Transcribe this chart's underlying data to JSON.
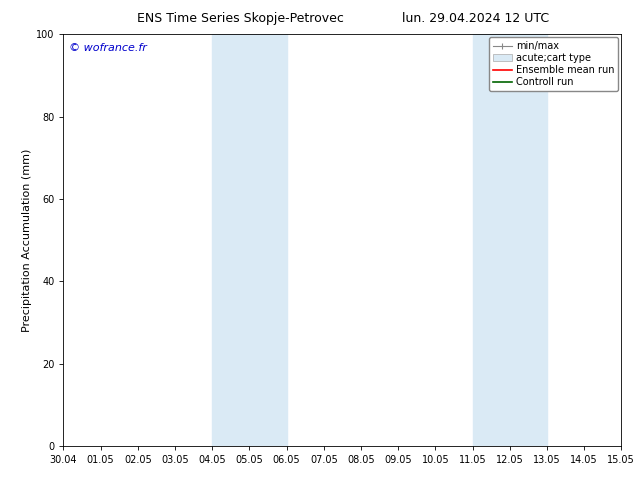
{
  "title_left": "ENS Time Series Skopje-Petrovec",
  "title_right": "lun. 29.04.2024 12 UTC",
  "ylabel": "Precipitation Accumulation (mm)",
  "watermark": "© wofrance.fr",
  "watermark_color": "#0000cc",
  "ylim": [
    0,
    100
  ],
  "xtick_labels": [
    "30.04",
    "01.05",
    "02.05",
    "03.05",
    "04.05",
    "05.05",
    "06.05",
    "07.05",
    "08.05",
    "09.05",
    "10.05",
    "11.05",
    "12.05",
    "13.05",
    "14.05",
    "15.05"
  ],
  "shaded_regions": [
    {
      "xstart": 4.0,
      "xend": 5.0,
      "color": "#daeaf5"
    },
    {
      "xstart": 5.0,
      "xend": 6.0,
      "color": "#daeaf5"
    },
    {
      "xstart": 11.0,
      "xend": 12.0,
      "color": "#daeaf5"
    },
    {
      "xstart": 12.0,
      "xend": 13.0,
      "color": "#daeaf5"
    }
  ],
  "bg_color": "#ffffff",
  "plot_bg_color": "#ffffff",
  "title_fontsize": 9,
  "ylabel_fontsize": 8,
  "tick_fontsize": 7,
  "watermark_fontsize": 8,
  "legend_fontsize": 7
}
